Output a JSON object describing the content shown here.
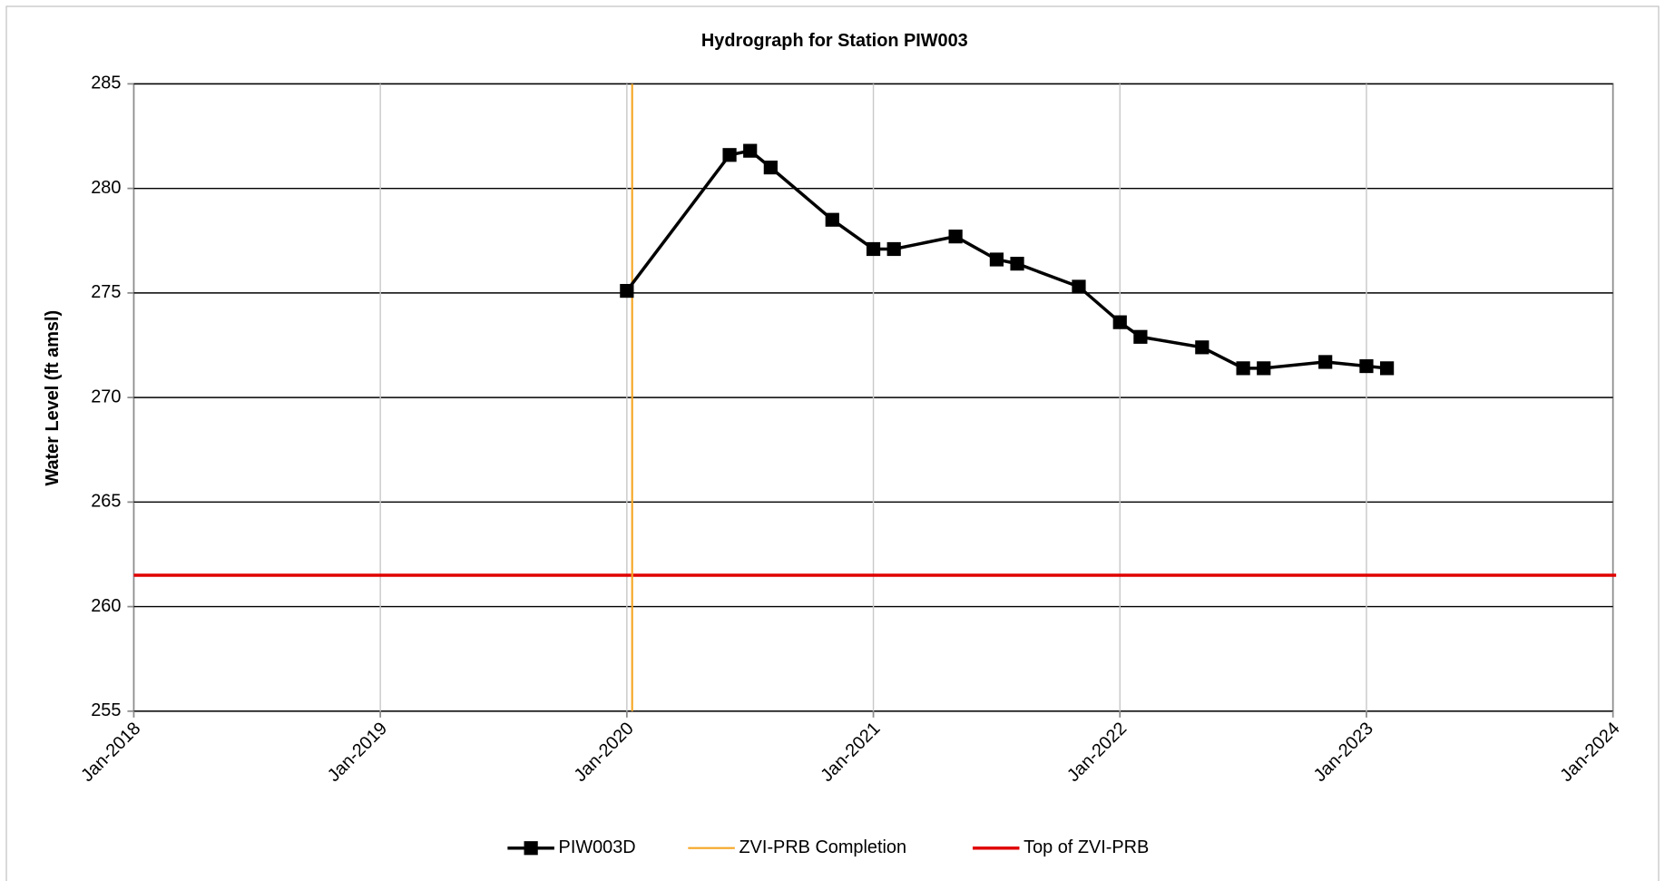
{
  "chart_data": {
    "type": "line",
    "title": "Hydrograph for Station PIW003",
    "y_label": "Water Level (ft amsl)",
    "x": [
      "2020-01",
      "2020-06",
      "2020-07",
      "2020-08",
      "2020-11",
      "2021-01",
      "2021-02",
      "2021-05",
      "2021-07",
      "2021-08",
      "2021-11",
      "2022-01",
      "2022-02",
      "2022-05",
      "2022-07",
      "2022-08",
      "2022-11",
      "2023-01",
      "2023-02"
    ],
    "series": [
      {
        "name": "PIW003D",
        "color": "#000000",
        "marker": "square",
        "values": [
          275.1,
          281.6,
          281.8,
          281.0,
          278.5,
          277.1,
          277.1,
          277.7,
          276.6,
          276.4,
          275.3,
          273.6,
          272.9,
          272.4,
          271.4,
          271.4,
          271.7,
          271.5,
          271.4
        ]
      }
    ],
    "vlines": [
      {
        "name": "ZVI-PRB Completion",
        "color": "#f5a623",
        "x": "2020-01"
      }
    ],
    "hlines": [
      {
        "name": "Top of ZVI-PRB",
        "color": "#e00000",
        "y": 261.5
      }
    ],
    "xlim": [
      "2018-01",
      "2024-01"
    ],
    "xticks": [
      {
        "value": "2018-01",
        "label": "Jan-2018"
      },
      {
        "value": "2019-01",
        "label": "Jan-2019"
      },
      {
        "value": "2020-01",
        "label": "Jan-2020"
      },
      {
        "value": "2021-01",
        "label": "Jan-2021"
      },
      {
        "value": "2022-01",
        "label": "Jan-2022"
      },
      {
        "value": "2023-01",
        "label": "Jan-2023"
      },
      {
        "value": "2024-01",
        "label": "Jan-2024"
      }
    ],
    "ylim": [
      255,
      285
    ],
    "yticks": [
      255,
      260,
      265,
      270,
      275,
      280,
      285
    ],
    "grid": true,
    "legend": "bottom"
  }
}
